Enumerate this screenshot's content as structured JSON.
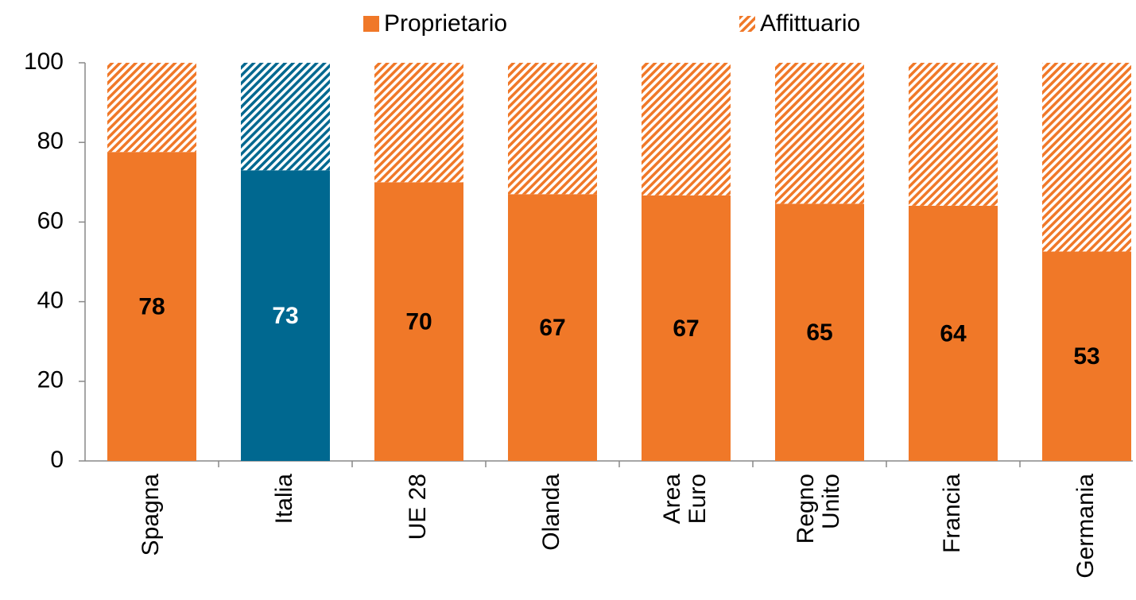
{
  "chart_data": {
    "type": "stacked_bar",
    "categories": [
      "Spagna",
      "Italia",
      "UE 28",
      "Olanda",
      "Area\nEuro",
      "Regno\nUnito",
      "Francia",
      "Germania"
    ],
    "series": [
      {
        "name": "Proprietario",
        "color": "#f07828",
        "pattern": "solid",
        "colors": [
          "#f07828",
          "#006890",
          "#f07828",
          "#f07828",
          "#f07828",
          "#f07828",
          "#f07828",
          "#f07828"
        ],
        "label_colors": [
          "#000000",
          "#ffffff",
          "#000000",
          "#000000",
          "#000000",
          "#000000",
          "#000000",
          "#000000"
        ],
        "values": [
          77.6,
          73,
          70,
          67,
          66.7,
          64.6,
          64.1,
          52.6
        ],
        "value_labels": [
          "78",
          "73",
          "70",
          "67",
          "67",
          "65",
          "64",
          "53"
        ]
      },
      {
        "name": "Affittuario",
        "color": "#f07828",
        "pattern": "hatch",
        "colors": [
          "#f07828",
          "#006890",
          "#f07828",
          "#f07828",
          "#f07828",
          "#f07828",
          "#f07828",
          "#f07828"
        ],
        "values": [
          22.4,
          27,
          30,
          33,
          33.3,
          35.4,
          35.9,
          47.4
        ]
      }
    ],
    "ylim": [
      0,
      100
    ],
    "yticks": [
      0,
      20,
      40,
      60,
      80,
      100
    ],
    "grid": false,
    "legend": "top"
  }
}
